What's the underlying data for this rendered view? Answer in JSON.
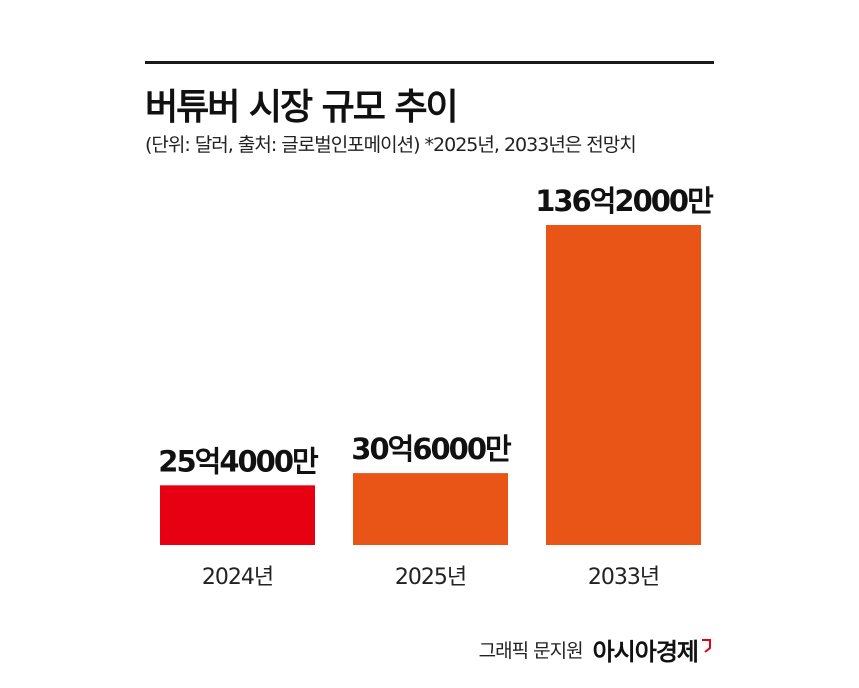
{
  "title": "버튜버 시장 규모 추이",
  "subtitle": "(단위: 달러, 출처: 글로벌인포메이션) *2025년, 2033년은 전망치",
  "credit": "그래픽 문지원",
  "brand": "아시아경제",
  "colors": {
    "bar_2024": "#E60012",
    "bar_forecast": "#E95516",
    "rule": "#1a1a1a"
  },
  "chart_data": {
    "type": "bar",
    "categories": [
      "2024년",
      "2025년",
      "2033년"
    ],
    "values": [
      2540000000,
      3060000000,
      13620000000
    ],
    "value_labels": [
      "25억4000만",
      "30억6000만",
      "136억2000만"
    ],
    "ylim": [
      0,
      13620000000
    ]
  }
}
